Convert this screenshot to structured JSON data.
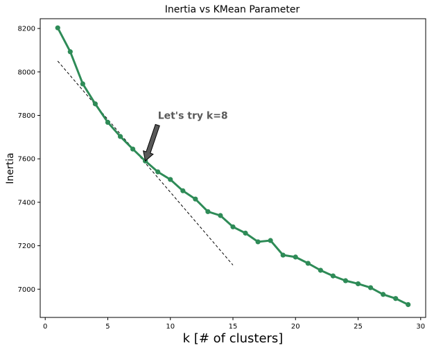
{
  "chart_data": {
    "type": "line",
    "title": "Inertia vs KMean Parameter",
    "xlabel": "k [# of clusters]",
    "ylabel": "Inertia",
    "xlim": [
      -0.4,
      30.4
    ],
    "ylim": [
      6870,
      8245
    ],
    "xticks": [
      0,
      5,
      10,
      15,
      20,
      25,
      30
    ],
    "yticks": [
      7000,
      7200,
      7400,
      7600,
      7800,
      8000,
      8200
    ],
    "grid": false,
    "series": [
      {
        "color": "#2e8b57",
        "x": [
          1,
          2,
          3,
          4,
          5,
          6,
          7,
          8,
          9,
          10,
          11,
          12,
          13,
          14,
          15,
          16,
          17,
          18,
          19,
          20,
          21,
          22,
          23,
          24,
          25,
          26,
          27,
          28,
          29
        ],
        "values": [
          8203,
          8093,
          7945,
          7853,
          7768,
          7703,
          7645,
          7590,
          7540,
          7505,
          7453,
          7415,
          7357,
          7339,
          7287,
          7258,
          7218,
          7224,
          7157,
          7148,
          7119,
          7087,
          7061,
          7039,
          7025,
          7007,
          6976,
          6957,
          6929
        ]
      }
    ],
    "tangent_line": {
      "color": "#000000",
      "style": "dashed",
      "x": [
        1,
        15
      ],
      "y": [
        8050,
        7111
      ]
    },
    "annotation": {
      "text": "Let's try k=8",
      "text_at": [
        9,
        7800
      ],
      "arrow_to": [
        8,
        7590
      ],
      "color": "#5a5a5a"
    }
  }
}
